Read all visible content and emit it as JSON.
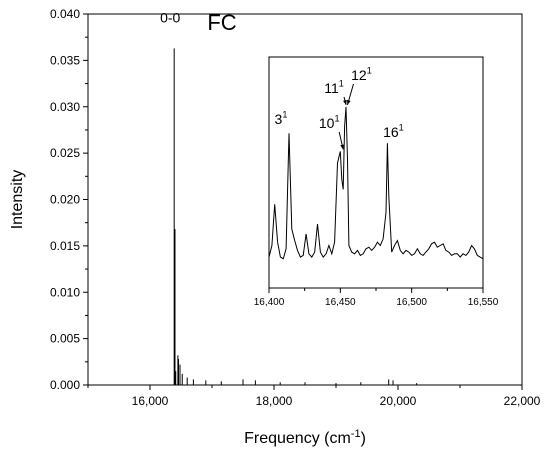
{
  "chart_data": [
    {
      "panel": "main",
      "type": "line",
      "title": "FC",
      "xlabel": "Frequency (cm",
      "xlabel_sup": "-1",
      "xlabel_close": ")",
      "ylabel": "Intensity",
      "xlim": [
        15000,
        22000
      ],
      "ylim": [
        0,
        0.04
      ],
      "xticks": [
        16000,
        18000,
        20000,
        22000
      ],
      "xtick_labels": [
        "16,000",
        "18,000",
        "20,000",
        "22,000"
      ],
      "yticks": [
        0.0,
        0.005,
        0.01,
        0.015,
        0.02,
        0.025,
        0.03,
        0.035,
        0.04
      ],
      "ytick_labels": [
        "0.000",
        "0.005",
        "0.010",
        "0.015",
        "0.020",
        "0.025",
        "0.030",
        "0.035",
        "0.040"
      ],
      "annotations": [
        {
          "text": "0-0",
          "x": 16390,
          "y": 0.0395
        }
      ],
      "lines": [
        {
          "x": 16390,
          "y": 0.0363
        },
        {
          "x": 16403,
          "y": 0.0168
        },
        {
          "x": 16450,
          "y": 0.0032
        },
        {
          "x": 16460,
          "y": 0.0028
        },
        {
          "x": 16484,
          "y": 0.0022
        },
        {
          "x": 16415,
          "y": 0.0015
        },
        {
          "x": 16520,
          "y": 0.0012
        },
        {
          "x": 16600,
          "y": 0.0008
        },
        {
          "x": 16700,
          "y": 0.0006
        },
        {
          "x": 16900,
          "y": 0.0005
        },
        {
          "x": 17150,
          "y": 0.0004
        },
        {
          "x": 17500,
          "y": 0.0006
        },
        {
          "x": 17700,
          "y": 0.0005
        },
        {
          "x": 18100,
          "y": 0.0003
        },
        {
          "x": 18500,
          "y": 0.0003
        },
        {
          "x": 19000,
          "y": 0.0002
        },
        {
          "x": 19400,
          "y": 0.0003
        },
        {
          "x": 19850,
          "y": 0.0006
        },
        {
          "x": 19920,
          "y": 0.0005
        },
        {
          "x": 20300,
          "y": 0.0002
        }
      ]
    },
    {
      "panel": "inset",
      "type": "line",
      "xlim": [
        16400,
        16550
      ],
      "ylim": [
        0,
        1
      ],
      "xticks": [
        16400,
        16450,
        16500,
        16550
      ],
      "xtick_labels": [
        "16,400",
        "16,450",
        "16,500",
        "16,550"
      ],
      "series": [
        {
          "x": [
            16400,
            16402,
            16404,
            16406,
            16408,
            16410,
            16412,
            16414,
            16416,
            16418,
            16420,
            16422,
            16424,
            16426,
            16428,
            16430,
            16432,
            16434,
            16436,
            16438,
            16440,
            16442,
            16444,
            16446,
            16448,
            16450,
            16451,
            16452,
            16453,
            16454,
            16455,
            16456,
            16458,
            16460,
            16462,
            16464,
            16466,
            16468,
            16470,
            16472,
            16474,
            16476,
            16478,
            16480,
            16482,
            16483,
            16484,
            16486,
            16488,
            16490,
            16492,
            16494,
            16496,
            16498,
            16500,
            16502,
            16504,
            16506,
            16508,
            16510,
            16512,
            16514,
            16516,
            16518,
            16520,
            16522,
            16524,
            16526,
            16528,
            16530,
            16532,
            16534,
            16536,
            16538,
            16540,
            16542,
            16544,
            16546,
            16548,
            16550
          ],
          "y": [
            0.03,
            0.1,
            0.35,
            0.12,
            0.03,
            0.02,
            0.08,
            0.78,
            0.2,
            0.13,
            0.07,
            0.03,
            0.04,
            0.17,
            0.05,
            0.03,
            0.06,
            0.23,
            0.06,
            0.03,
            0.05,
            0.1,
            0.05,
            0.12,
            0.6,
            0.67,
            0.5,
            0.44,
            0.82,
            0.94,
            0.62,
            0.1,
            0.06,
            0.05,
            0.07,
            0.04,
            0.05,
            0.08,
            0.09,
            0.07,
            0.09,
            0.12,
            0.1,
            0.14,
            0.3,
            0.72,
            0.4,
            0.06,
            0.1,
            0.13,
            0.07,
            0.05,
            0.07,
            0.06,
            0.04,
            0.05,
            0.08,
            0.05,
            0.04,
            0.06,
            0.08,
            0.11,
            0.12,
            0.09,
            0.1,
            0.11,
            0.07,
            0.06,
            0.04,
            0.05,
            0.05,
            0.03,
            0.05,
            0.04,
            0.06,
            0.1,
            0.08,
            0.04,
            0.03,
            0.02
          ]
        }
      ],
      "annotations": [
        {
          "label": "3",
          "sup": "1",
          "x": 16414,
          "y": 0.78,
          "arrow": false
        },
        {
          "label": "10",
          "sup": "1",
          "x": 16452,
          "y": 0.67,
          "arrow": true
        },
        {
          "label": "11",
          "sup": "1",
          "x": 16454,
          "y": 0.94,
          "arrow": true
        },
        {
          "label": "12",
          "sup": "1",
          "x": 16455,
          "y": 0.94,
          "arrow": true
        },
        {
          "label": "16",
          "sup": "1",
          "x": 16483,
          "y": 0.72,
          "arrow": false
        }
      ]
    }
  ]
}
